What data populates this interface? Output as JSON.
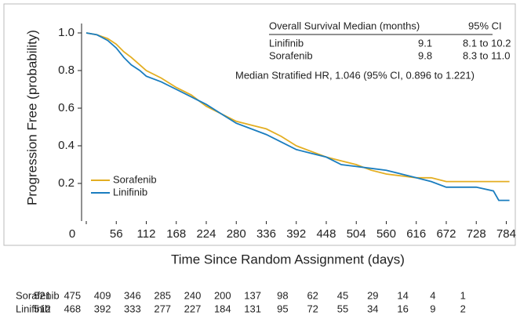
{
  "chart_data": {
    "type": "line",
    "x_label": "Time Since Random Assignment (days)",
    "y_label": "Progression Free (probability)",
    "xlim": [
      0,
      795
    ],
    "ylim": [
      0,
      1.05
    ],
    "xticks": [
      0,
      56,
      112,
      168,
      224,
      280,
      336,
      392,
      448,
      504,
      560,
      616,
      672,
      728,
      784
    ],
    "yticks": [
      0.2,
      0.4,
      0.6,
      0.8,
      {
        "value": 1.0,
        "label": "1.0"
      }
    ],
    "series": [
      {
        "name": "Sorafenib",
        "color": "#e3ae22",
        "x": [
          0,
          20,
          40,
          56,
          70,
          84,
          100,
          112,
          140,
          168,
          196,
          224,
          252,
          280,
          308,
          336,
          364,
          392,
          420,
          448,
          476,
          504,
          532,
          560,
          588,
          616,
          644,
          672,
          700,
          728,
          790
        ],
        "values": [
          1.0,
          0.99,
          0.97,
          0.94,
          0.9,
          0.87,
          0.83,
          0.8,
          0.76,
          0.71,
          0.67,
          0.61,
          0.57,
          0.53,
          0.51,
          0.49,
          0.45,
          0.4,
          0.37,
          0.34,
          0.32,
          0.3,
          0.27,
          0.25,
          0.24,
          0.23,
          0.23,
          0.21,
          0.21,
          0.21,
          0.21
        ]
      },
      {
        "name": "Linifinib",
        "color": "#1a7dbf",
        "x": [
          0,
          20,
          40,
          56,
          70,
          84,
          100,
          112,
          140,
          168,
          196,
          224,
          252,
          280,
          308,
          336,
          364,
          392,
          420,
          448,
          476,
          504,
          532,
          560,
          588,
          616,
          644,
          672,
          700,
          728,
          760,
          770,
          790
        ],
        "values": [
          1.0,
          0.99,
          0.96,
          0.92,
          0.87,
          0.83,
          0.8,
          0.77,
          0.74,
          0.7,
          0.66,
          0.62,
          0.57,
          0.52,
          0.49,
          0.46,
          0.42,
          0.38,
          0.36,
          0.34,
          0.3,
          0.29,
          0.28,
          0.27,
          0.25,
          0.23,
          0.21,
          0.18,
          0.18,
          0.18,
          0.16,
          0.11,
          0.11
        ]
      }
    ],
    "inset": {
      "header": [
        "Overall Survival Median (months)",
        "95% CI"
      ],
      "rows": [
        [
          "Linifinib",
          "9.1",
          "8.1 to 10.2"
        ],
        [
          "Sorafenib",
          "9.8",
          "8.3 to 11.0"
        ]
      ],
      "note": "Median Stratified HR, 1.046 (95% CI, 0.896 to 1.221)"
    },
    "at_risk": [
      {
        "name": "Sorafenib",
        "values": [
          521,
          475,
          409,
          346,
          285,
          240,
          200,
          137,
          98,
          62,
          45,
          29,
          14,
          4,
          1
        ]
      },
      {
        "name": "Linifinib",
        "values": [
          512,
          468,
          392,
          333,
          277,
          227,
          184,
          131,
          95,
          72,
          55,
          34,
          16,
          9,
          2
        ]
      }
    ]
  }
}
